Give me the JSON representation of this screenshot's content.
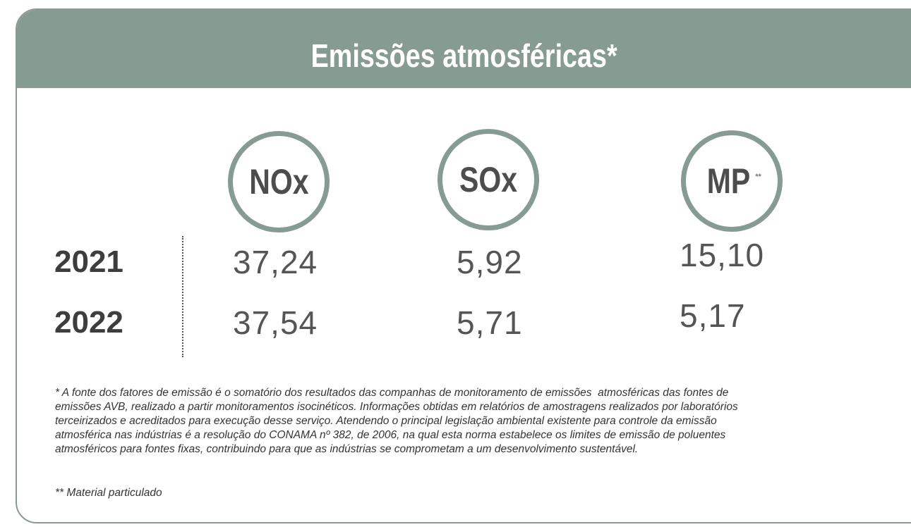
{
  "title": "Emissões atmosféricas*",
  "columns": [
    {
      "label": "NOx"
    },
    {
      "label": "SOx"
    },
    {
      "label": "MP",
      "mark": "**"
    }
  ],
  "rows": [
    {
      "year": "2021",
      "values": [
        "37,24",
        "5,92",
        "15,10"
      ]
    },
    {
      "year": "2022",
      "values": [
        "37,54",
        "5,71",
        "5,17"
      ]
    }
  ],
  "footnote": [
    "* A fonte dos fatores de emissão é o somatório dos resultados das companhas de monitoramento de emissões  atmosféricas das fontes de",
    "emissões AVB, realizado a partir monitoramentos isocinéticos. Informações obtidas em relatórios de amostragens realizados por laboratórios",
    "terceirizados e acreditados para execução desse serviço. Atendendo o principal legislação ambiental existente para controle da emissão",
    "atmosférica nas indústrias é a resolução do CONAMA nº 382, de 2006, na qual esta norma estabelece os limites de emissão de poluentes",
    "atmosféricos para fontes fixas, contribuindo para que as indústrias se comprometam a um desenvolvimento sustentável."
  ],
  "footnote2": "** Material particulado"
}
